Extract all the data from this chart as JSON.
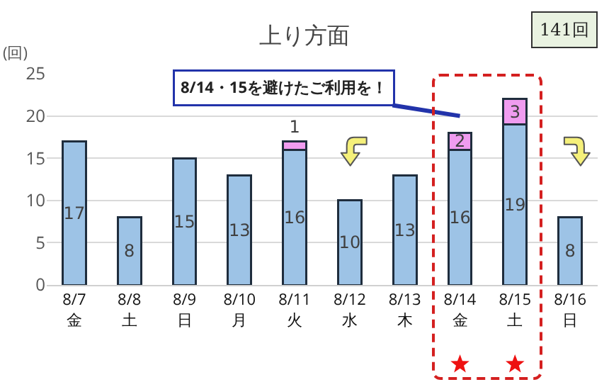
{
  "chart_data": {
    "type": "bar",
    "title": "上り方面",
    "ylabel": "(回)",
    "categories": [
      "8/7\n金",
      "8/8\n土",
      "8/9\n日",
      "8/10\n月",
      "8/11\n火",
      "8/12\n水",
      "8/13\n木",
      "8/14\n金",
      "8/15\n土",
      "8/16\n日"
    ],
    "series": [
      {
        "color": "#9dc3e6",
        "values": [
          17,
          8,
          15,
          13,
          16,
          10,
          13,
          16,
          19,
          8
        ]
      },
      {
        "color": "#f09cf0",
        "values": [
          null,
          null,
          null,
          null,
          1,
          null,
          null,
          2,
          3,
          null
        ]
      }
    ],
    "stacked": true,
    "data_labels": true,
    "ylim": [
      0,
      25
    ],
    "yticks": [
      0,
      5,
      10,
      15,
      20,
      25
    ],
    "grid": "y",
    "annotations": [
      "8/14・15を避けたご利用を！",
      "141回"
    ]
  }
}
